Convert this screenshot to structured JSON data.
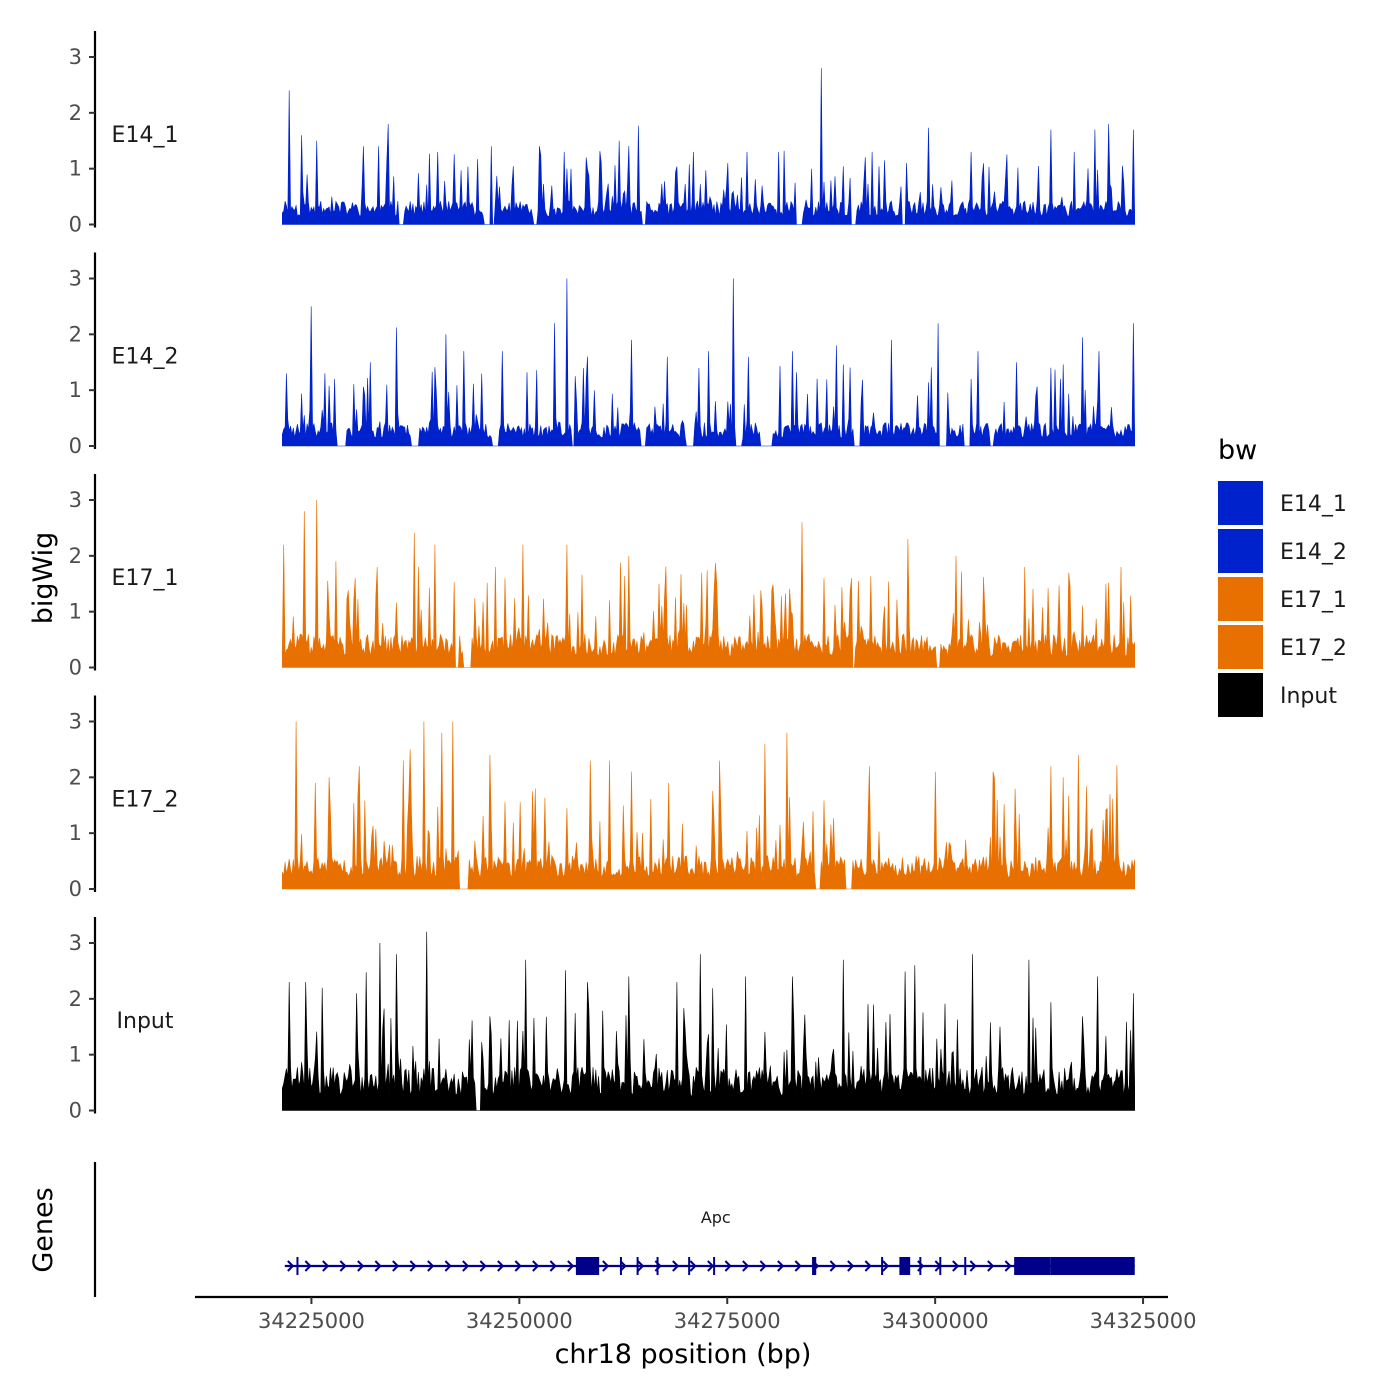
{
  "chart_data": {
    "type": "area",
    "title": "",
    "chromosome": "chr18",
    "xlabel": "chr18 position (bp)",
    "ylabel": "bigWig",
    "genes_label": "Genes",
    "xlim": [
      34211000,
      34328000
    ],
    "data_range": [
      34221500,
      34324000
    ],
    "x_ticks": [
      34225000,
      34250000,
      34275000,
      34300000,
      34325000
    ],
    "x_tick_labels": [
      "34225000",
      "34250000",
      "34275000",
      "34300000",
      "34325000"
    ],
    "ylim": [
      0,
      3.4
    ],
    "y_ticks": [
      0,
      1,
      2,
      3
    ],
    "y_tick_labels": [
      "0",
      "1",
      "2",
      "3"
    ],
    "legend": {
      "title": "bw",
      "position": "right",
      "entries": [
        {
          "label": "E14_1",
          "color": "#0022CC"
        },
        {
          "label": "E14_2",
          "color": "#0022CC"
        },
        {
          "label": "E17_1",
          "color": "#E87000"
        },
        {
          "label": "E17_2",
          "color": "#E87000"
        },
        {
          "label": "Input",
          "color": "#000000"
        }
      ]
    },
    "series": [
      {
        "name": "E14_1",
        "color": "#0022CC",
        "base_level": 0.35,
        "noise_level": 0.9,
        "seed": 11,
        "gaps": [
          [
            34235500,
            34236200
          ],
          [
            34245800,
            34247100
          ],
          [
            34251600,
            34252200
          ],
          [
            34264800,
            34265300
          ],
          [
            34283300,
            34284000
          ],
          [
            34289800,
            34290500
          ],
          [
            34295900,
            34296600
          ]
        ],
        "peaks": [
          {
            "x": 34222300,
            "y": 2.4
          },
          {
            "x": 34223800,
            "y": 1.6
          },
          {
            "x": 34225600,
            "y": 1.5
          },
          {
            "x": 34231300,
            "y": 1.4
          },
          {
            "x": 34233000,
            "y": 1.4
          },
          {
            "x": 34234200,
            "y": 1.8
          },
          {
            "x": 34240200,
            "y": 1.3
          },
          {
            "x": 34246700,
            "y": 1.4
          },
          {
            "x": 34252400,
            "y": 1.4
          },
          {
            "x": 34255400,
            "y": 1.3
          },
          {
            "x": 34258000,
            "y": 1.2
          },
          {
            "x": 34262000,
            "y": 1.5
          },
          {
            "x": 34271000,
            "y": 1.3
          },
          {
            "x": 34275000,
            "y": 1.1
          },
          {
            "x": 34277300,
            "y": 1.3
          },
          {
            "x": 34281200,
            "y": 1.3
          },
          {
            "x": 34286300,
            "y": 2.8
          },
          {
            "x": 34292400,
            "y": 1.3
          },
          {
            "x": 34296500,
            "y": 1.1
          },
          {
            "x": 34304300,
            "y": 1.3
          },
          {
            "x": 34313900,
            "y": 1.7
          },
          {
            "x": 34316800,
            "y": 1.3
          },
          {
            "x": 34319200,
            "y": 1.7
          },
          {
            "x": 34320800,
            "y": 1.8
          },
          {
            "x": 34323800,
            "y": 1.7
          }
        ]
      },
      {
        "name": "E14_2",
        "color": "#0022CC",
        "base_level": 0.35,
        "noise_level": 1.2,
        "seed": 23,
        "gaps": [
          [
            34228000,
            34229200
          ],
          [
            34237000,
            34238000
          ],
          [
            34246700,
            34247500
          ],
          [
            34256300,
            34256700
          ],
          [
            34264500,
            34265300
          ],
          [
            34270000,
            34271000
          ],
          [
            34276000,
            34276800
          ],
          [
            34279000,
            34280500
          ],
          [
            34290200,
            34291000
          ],
          [
            34300500,
            34301500
          ],
          [
            34303500,
            34304200
          ],
          [
            34306500,
            34307000
          ]
        ],
        "peaks": [
          {
            "x": 34222000,
            "y": 1.3
          },
          {
            "x": 34225000,
            "y": 2.5
          },
          {
            "x": 34226700,
            "y": 1.3
          },
          {
            "x": 34232000,
            "y": 1.5
          },
          {
            "x": 34241200,
            "y": 2.0
          },
          {
            "x": 34243400,
            "y": 1.7
          },
          {
            "x": 34248000,
            "y": 1.7
          },
          {
            "x": 34254200,
            "y": 2.2
          },
          {
            "x": 34255800,
            "y": 3.0
          },
          {
            "x": 34258200,
            "y": 1.6
          },
          {
            "x": 34263500,
            "y": 1.9
          },
          {
            "x": 34267800,
            "y": 1.6
          },
          {
            "x": 34272700,
            "y": 1.7
          },
          {
            "x": 34275700,
            "y": 3.0
          },
          {
            "x": 34277500,
            "y": 1.6
          },
          {
            "x": 34282800,
            "y": 1.7
          },
          {
            "x": 34288200,
            "y": 1.8
          },
          {
            "x": 34294700,
            "y": 1.9
          },
          {
            "x": 34300400,
            "y": 2.2
          },
          {
            "x": 34305100,
            "y": 1.7
          },
          {
            "x": 34309700,
            "y": 1.5
          },
          {
            "x": 34313900,
            "y": 1.4
          },
          {
            "x": 34319700,
            "y": 1.7
          },
          {
            "x": 34323800,
            "y": 2.2
          }
        ]
      },
      {
        "name": "E17_1",
        "color": "#E87000",
        "base_level": 0.5,
        "noise_level": 1.3,
        "seed": 37,
        "gaps": [
          [
            34242300,
            34242700
          ],
          [
            34243200,
            34244200
          ],
          [
            34290000,
            34290300
          ],
          [
            34300100,
            34300600
          ]
        ],
        "peaks": [
          {
            "x": 34221600,
            "y": 2.2
          },
          {
            "x": 34224100,
            "y": 2.8
          },
          {
            "x": 34225700,
            "y": 3.0
          },
          {
            "x": 34228000,
            "y": 1.9
          },
          {
            "x": 34230300,
            "y": 1.6
          },
          {
            "x": 34232900,
            "y": 1.8
          },
          {
            "x": 34237900,
            "y": 1.8
          },
          {
            "x": 34239800,
            "y": 2.2
          },
          {
            "x": 34247200,
            "y": 1.8
          },
          {
            "x": 34250500,
            "y": 2.2
          },
          {
            "x": 34255800,
            "y": 2.2
          },
          {
            "x": 34263100,
            "y": 2.0
          },
          {
            "x": 34266800,
            "y": 1.5
          },
          {
            "x": 34271900,
            "y": 1.7
          },
          {
            "x": 34278200,
            "y": 1.3
          },
          {
            "x": 34284000,
            "y": 2.6
          },
          {
            "x": 34290000,
            "y": 1.6
          },
          {
            "x": 34296700,
            "y": 2.3
          },
          {
            "x": 34302500,
            "y": 2.0
          },
          {
            "x": 34310700,
            "y": 1.8
          },
          {
            "x": 34316000,
            "y": 1.7
          },
          {
            "x": 34322300,
            "y": 1.8
          }
        ]
      },
      {
        "name": "E17_2",
        "color": "#E87000",
        "base_level": 0.5,
        "noise_level": 1.3,
        "seed": 53,
        "gaps": [
          [
            34242800,
            34243900
          ],
          [
            34285500,
            34286200
          ],
          [
            34289200,
            34290000
          ]
        ],
        "peaks": [
          {
            "x": 34223100,
            "y": 3.0
          },
          {
            "x": 34225400,
            "y": 1.9
          },
          {
            "x": 34227100,
            "y": 2.0
          },
          {
            "x": 34230700,
            "y": 2.2
          },
          {
            "x": 34236800,
            "y": 2.5
          },
          {
            "x": 34238500,
            "y": 3.0
          },
          {
            "x": 34240700,
            "y": 2.8
          },
          {
            "x": 34242000,
            "y": 3.0
          },
          {
            "x": 34246400,
            "y": 2.4
          },
          {
            "x": 34251900,
            "y": 1.8
          },
          {
            "x": 34258500,
            "y": 2.3
          },
          {
            "x": 34260900,
            "y": 2.3
          },
          {
            "x": 34268000,
            "y": 1.9
          },
          {
            "x": 34274000,
            "y": 2.3
          },
          {
            "x": 34279600,
            "y": 2.6
          },
          {
            "x": 34282100,
            "y": 2.8
          },
          {
            "x": 34292100,
            "y": 2.2
          },
          {
            "x": 34300000,
            "y": 2.1
          },
          {
            "x": 34306900,
            "y": 2.1
          },
          {
            "x": 34313900,
            "y": 2.2
          },
          {
            "x": 34317200,
            "y": 2.4
          },
          {
            "x": 34321000,
            "y": 1.7
          }
        ]
      },
      {
        "name": "Input",
        "color": "#000000",
        "base_level": 0.65,
        "noise_level": 1.3,
        "seed": 71,
        "gaps": [
          [
            34244800,
            34245400
          ]
        ],
        "peaks": [
          {
            "x": 34222400,
            "y": 2.3
          },
          {
            "x": 34224300,
            "y": 2.3
          },
          {
            "x": 34226300,
            "y": 2.2
          },
          {
            "x": 34230400,
            "y": 2.1
          },
          {
            "x": 34233200,
            "y": 3.0
          },
          {
            "x": 34235200,
            "y": 2.8
          },
          {
            "x": 34238800,
            "y": 3.2
          },
          {
            "x": 34250700,
            "y": 2.7
          },
          {
            "x": 34258200,
            "y": 2.3
          },
          {
            "x": 34263200,
            "y": 2.4
          },
          {
            "x": 34268900,
            "y": 2.3
          },
          {
            "x": 34271700,
            "y": 2.8
          },
          {
            "x": 34277200,
            "y": 2.4
          },
          {
            "x": 34282800,
            "y": 2.4
          },
          {
            "x": 34288900,
            "y": 2.7
          },
          {
            "x": 34297600,
            "y": 2.6
          },
          {
            "x": 34304500,
            "y": 2.8
          },
          {
            "x": 34311200,
            "y": 2.7
          },
          {
            "x": 34319600,
            "y": 2.4
          },
          {
            "x": 34323800,
            "y": 2.1
          }
        ]
      }
    ],
    "genes": [
      {
        "name": "Apc",
        "strand": "+",
        "color": "#00008B",
        "start": 34221800,
        "end": 34324000,
        "exons": [
          [
            34223200,
            34223400
          ],
          [
            34256800,
            34259600
          ],
          [
            34262100,
            34262200
          ],
          [
            34264100,
            34264200
          ],
          [
            34266500,
            34266600
          ],
          [
            34270300,
            34270400
          ],
          [
            34273300,
            34273400
          ],
          [
            34285200,
            34285700
          ],
          [
            34293500,
            34293600
          ],
          [
            34295700,
            34297000
          ],
          [
            34298100,
            34298200
          ],
          [
            34300500,
            34300600
          ],
          [
            34303500,
            34303600
          ],
          [
            34309500,
            34313900
          ],
          [
            34313900,
            34324000
          ]
        ]
      }
    ]
  }
}
